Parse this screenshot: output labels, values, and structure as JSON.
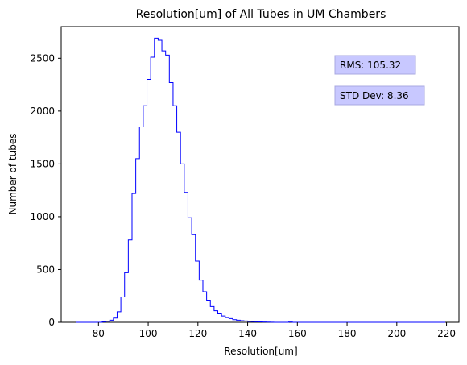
{
  "chart_data": {
    "type": "bar",
    "style": "step-histogram",
    "title": "Resolution[um] of All Tubes in UM Chambers",
    "xlabel": "Resolution[um]",
    "ylabel": "Number of tubes",
    "xlim": [
      65,
      225
    ],
    "ylim": [
      0,
      2800
    ],
    "xticks": [
      80,
      100,
      120,
      140,
      160,
      180,
      200,
      220
    ],
    "yticks": [
      0,
      500,
      1000,
      1500,
      2000,
      2500
    ],
    "bin_width": 1.5,
    "color": "#0000ff",
    "grid": false,
    "bins": [
      [
        71,
        0
      ],
      [
        72.5,
        0
      ],
      [
        74,
        0
      ],
      [
        75.5,
        0
      ],
      [
        77,
        0
      ],
      [
        78.5,
        0
      ],
      [
        80,
        0
      ],
      [
        81.5,
        5
      ],
      [
        83,
        10
      ],
      [
        84.5,
        20
      ],
      [
        86,
        40
      ],
      [
        87.5,
        100
      ],
      [
        89,
        240
      ],
      [
        90.5,
        470
      ],
      [
        92,
        780
      ],
      [
        93.5,
        1220
      ],
      [
        95,
        1550
      ],
      [
        96.5,
        1850
      ],
      [
        98,
        2050
      ],
      [
        99.5,
        2300
      ],
      [
        101,
        2510
      ],
      [
        102.5,
        2690
      ],
      [
        104,
        2670
      ],
      [
        105.5,
        2570
      ],
      [
        107,
        2530
      ],
      [
        108.5,
        2270
      ],
      [
        110,
        2050
      ],
      [
        111.5,
        1800
      ],
      [
        113,
        1500
      ],
      [
        114.5,
        1230
      ],
      [
        116,
        990
      ],
      [
        117.5,
        830
      ],
      [
        119,
        580
      ],
      [
        120.5,
        400
      ],
      [
        122,
        290
      ],
      [
        123.5,
        210
      ],
      [
        125,
        150
      ],
      [
        126.5,
        110
      ],
      [
        128,
        80
      ],
      [
        129.5,
        60
      ],
      [
        131,
        45
      ],
      [
        132.5,
        35
      ],
      [
        134,
        25
      ],
      [
        135.5,
        20
      ],
      [
        137,
        15
      ],
      [
        138.5,
        12
      ],
      [
        140,
        9
      ],
      [
        141.5,
        7
      ],
      [
        143,
        5
      ],
      [
        144.5,
        4
      ],
      [
        146,
        3
      ],
      [
        147.5,
        2
      ],
      [
        149,
        1
      ],
      [
        150.5,
        0
      ],
      [
        152,
        0
      ],
      [
        153.5,
        0
      ],
      [
        155,
        0
      ],
      [
        156.5,
        3
      ],
      [
        158,
        0
      ],
      [
        159.5,
        0
      ],
      [
        161,
        0
      ],
      [
        162.5,
        0
      ],
      [
        164,
        0
      ],
      [
        165.5,
        0
      ],
      [
        167,
        0
      ],
      [
        168.5,
        0
      ],
      [
        170,
        0
      ],
      [
        171.5,
        0
      ],
      [
        173,
        0
      ],
      [
        174.5,
        0
      ],
      [
        176,
        0
      ],
      [
        177.5,
        0
      ],
      [
        179,
        0
      ],
      [
        180.5,
        0
      ],
      [
        182,
        0
      ],
      [
        183.5,
        0
      ],
      [
        185,
        0
      ],
      [
        186.5,
        0
      ],
      [
        188,
        0
      ],
      [
        189.5,
        0
      ],
      [
        191,
        0
      ],
      [
        192.5,
        0
      ],
      [
        194,
        0
      ],
      [
        195.5,
        0
      ],
      [
        197,
        0
      ],
      [
        198.5,
        0
      ],
      [
        200,
        0
      ],
      [
        201.5,
        0
      ],
      [
        203,
        0
      ],
      [
        204.5,
        0
      ],
      [
        206,
        0
      ],
      [
        207.5,
        0
      ],
      [
        209,
        0
      ],
      [
        210.5,
        0
      ],
      [
        212,
        0
      ],
      [
        213.5,
        0
      ],
      [
        215,
        0
      ],
      [
        216.5,
        0
      ],
      [
        218,
        0
      ]
    ],
    "annotations": [
      {
        "text": "RMS: 105.32"
      },
      {
        "text": "STD Dev: 8.36"
      }
    ]
  }
}
